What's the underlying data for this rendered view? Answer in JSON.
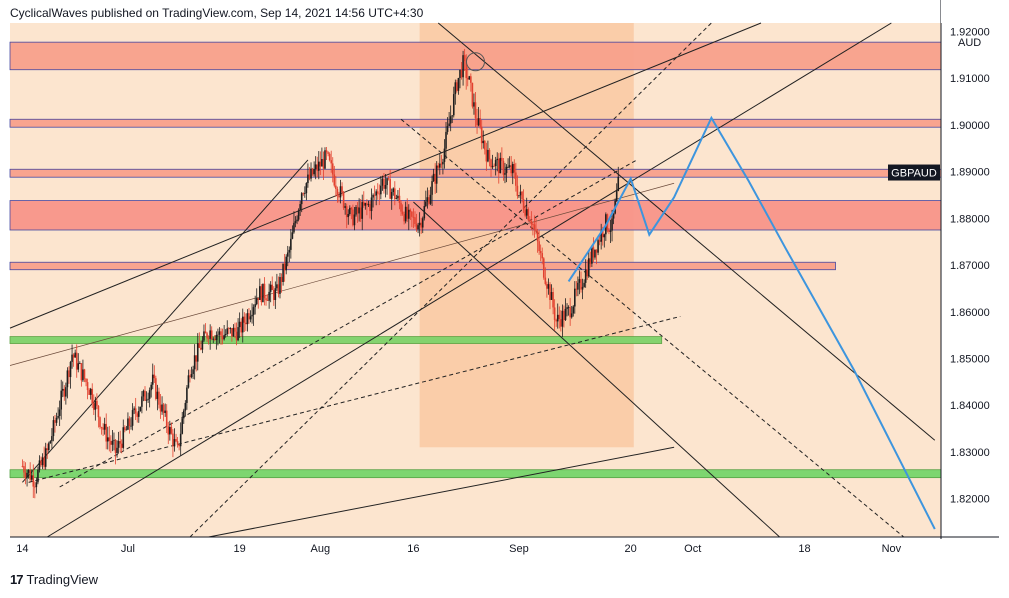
{
  "header": {
    "published": "CyclicalWaves published on TradingView.com, Sep 14, 2021 14:56 UTC+4:30"
  },
  "footer": {
    "brand": "TradingView",
    "logo_mark": "17"
  },
  "chart_data": {
    "type": "candlestick",
    "symbol": "GBPAUD",
    "currency": "AUD",
    "y_ticks": [
      "1.92000",
      "1.91000",
      "1.90000",
      "1.89000",
      "1.88000",
      "1.87000",
      "1.86000",
      "1.85000",
      "1.84000",
      "1.83000",
      "1.82000"
    ],
    "ylim": [
      1.8118,
      1.9218
    ],
    "last_price": 1.8898,
    "x_labels": [
      {
        "label": "14",
        "day": 0
      },
      {
        "label": "Jul",
        "day": 17
      },
      {
        "label": "19",
        "day": 35
      },
      {
        "label": "Aug",
        "day": 48
      },
      {
        "label": "16",
        "day": 63
      },
      {
        "label": "Sep",
        "day": 80
      },
      {
        "label": "20",
        "day": 98
      },
      {
        "label": "Oct",
        "day": 108
      },
      {
        "label": "18",
        "day": 126
      },
      {
        "label": "Nov",
        "day": 140
      }
    ],
    "x_range_days": [
      -2,
      148
    ],
    "price_path": [
      {
        "d": 0,
        "p": 1.827
      },
      {
        "d": 2,
        "p": 1.824
      },
      {
        "d": 4,
        "p": 1.83
      },
      {
        "d": 7,
        "p": 1.845
      },
      {
        "d": 8,
        "p": 1.851
      },
      {
        "d": 11,
        "p": 1.843
      },
      {
        "d": 13,
        "p": 1.835
      },
      {
        "d": 15,
        "p": 1.83
      },
      {
        "d": 18,
        "p": 1.838
      },
      {
        "d": 21,
        "p": 1.845
      },
      {
        "d": 23,
        "p": 1.837
      },
      {
        "d": 25,
        "p": 1.83
      },
      {
        "d": 27,
        "p": 1.848
      },
      {
        "d": 30,
        "p": 1.856
      },
      {
        "d": 32,
        "p": 1.855
      },
      {
        "d": 35,
        "p": 1.856
      },
      {
        "d": 38,
        "p": 1.864
      },
      {
        "d": 41,
        "p": 1.864
      },
      {
        "d": 43,
        "p": 1.873
      },
      {
        "d": 45,
        "p": 1.886
      },
      {
        "d": 47,
        "p": 1.89
      },
      {
        "d": 49,
        "p": 1.893
      },
      {
        "d": 51,
        "p": 1.886
      },
      {
        "d": 53,
        "p": 1.88
      },
      {
        "d": 56,
        "p": 1.883
      },
      {
        "d": 58,
        "p": 1.888
      },
      {
        "d": 60,
        "p": 1.885
      },
      {
        "d": 62,
        "p": 1.88
      },
      {
        "d": 64,
        "p": 1.879
      },
      {
        "d": 66,
        "p": 1.887
      },
      {
        "d": 68,
        "p": 1.895
      },
      {
        "d": 70,
        "p": 1.909
      },
      {
        "d": 71,
        "p": 1.913
      },
      {
        "d": 72,
        "p": 1.909
      },
      {
        "d": 73,
        "p": 1.902
      },
      {
        "d": 75,
        "p": 1.893
      },
      {
        "d": 77,
        "p": 1.891
      },
      {
        "d": 79,
        "p": 1.89
      },
      {
        "d": 80,
        "p": 1.885
      },
      {
        "d": 82,
        "p": 1.88
      },
      {
        "d": 84,
        "p": 1.869
      },
      {
        "d": 85,
        "p": 1.864
      },
      {
        "d": 86,
        "p": 1.858
      },
      {
        "d": 88,
        "p": 1.86
      },
      {
        "d": 90,
        "p": 1.866
      },
      {
        "d": 92,
        "p": 1.873
      },
      {
        "d": 94,
        "p": 1.879
      },
      {
        "d": 95,
        "p": 1.878
      },
      {
        "d": 96,
        "p": 1.887
      }
    ],
    "zones": [
      {
        "from": 1.9118,
        "to": 1.9177,
        "d0": -2,
        "d1": 148,
        "fill": "#f8a18c",
        "border": "#3a3fa0"
      },
      {
        "from": 1.8995,
        "to": 1.9012,
        "d0": -2,
        "d1": 148,
        "fill": "#f8a18c",
        "border": "#3a3fa0"
      },
      {
        "from": 1.8888,
        "to": 1.8905,
        "d0": -2,
        "d1": 148,
        "fill": "#f8a18c",
        "border": "#3a3fa0"
      },
      {
        "from": 1.8775,
        "to": 1.8838,
        "d0": -2,
        "d1": 148,
        "fill": "#f8958a",
        "border": "#3a3fa0"
      },
      {
        "from": 1.869,
        "to": 1.8706,
        "d0": -2,
        "d1": 131,
        "fill": "#f8a18c",
        "border": "#3a3fa0"
      },
      {
        "from": 1.8532,
        "to": 1.8547,
        "d0": -2,
        "d1": 103,
        "fill": "#7ed36a",
        "border": "#5aa040"
      },
      {
        "from": 1.8245,
        "to": 1.8262,
        "d0": -2,
        "d1": 148,
        "fill": "#77d66b",
        "border": "#4e9e3e"
      }
    ],
    "projection_path": [
      {
        "d": 88,
        "p": 1.8665
      },
      {
        "d": 94,
        "p": 1.8785
      },
      {
        "d": 98,
        "p": 1.8885
      },
      {
        "d": 101,
        "p": 1.8765
      },
      {
        "d": 105,
        "p": 1.8845
      },
      {
        "d": 111,
        "p": 1.9015
      },
      {
        "d": 117,
        "p": 1.888
      },
      {
        "d": 123,
        "p": 1.8735
      },
      {
        "d": 134,
        "p": 1.8475
      },
      {
        "d": 147,
        "p": 1.8135
      }
    ],
    "colors": {
      "up_candle": "#1e1e1e",
      "down_candle": "#e2412f",
      "background_band": "#f9cfa8",
      "time_box": "#f8b98a",
      "projection": "#3d95de",
      "channel_line": "#222222"
    }
  }
}
